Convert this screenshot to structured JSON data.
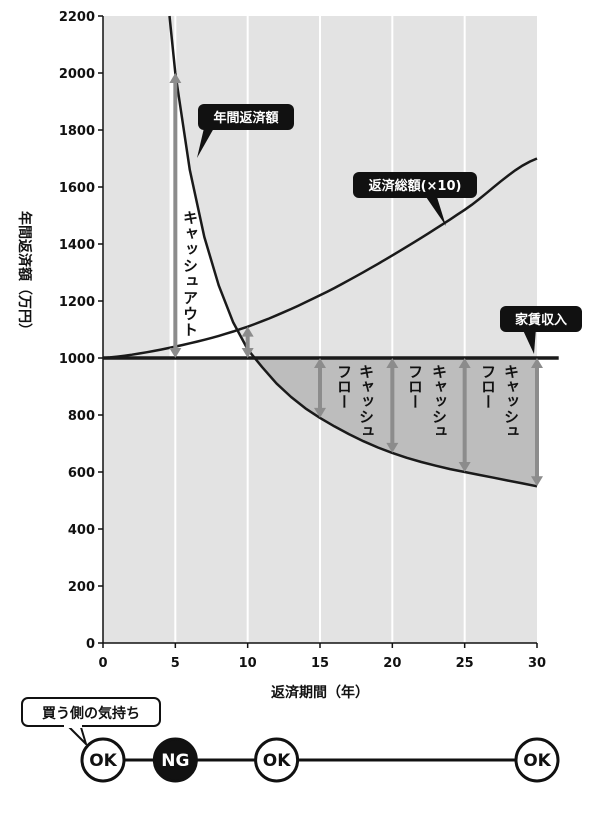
{
  "chart_data": {
    "type": "line",
    "xlabel": "返済期間（年）",
    "ylabel": "年間返済額（万円）",
    "xlim": [
      0,
      30
    ],
    "ylim": [
      0,
      2200
    ],
    "x_ticks": [
      0,
      5,
      10,
      15,
      20,
      25,
      30
    ],
    "y_ticks": [
      0,
      200,
      400,
      600,
      800,
      1000,
      1200,
      1400,
      1600,
      1800,
      2000,
      2200
    ],
    "series": [
      {
        "name": "年間返済額",
        "x": [
          4.6,
          5,
          6,
          7,
          8,
          9,
          10,
          11,
          12,
          13,
          14,
          15,
          16,
          17,
          18,
          19,
          20,
          21,
          22,
          23,
          24,
          25,
          26,
          27,
          28,
          29,
          30
        ],
        "y": [
          2200,
          2000,
          1660,
          1425,
          1255,
          1125,
          1030,
          968,
          910,
          863,
          823,
          790,
          760,
          733,
          708,
          686,
          667,
          650,
          635,
          622,
          610,
          600,
          590,
          580,
          570,
          560,
          550
        ]
      },
      {
        "name": "返済総額（×10）",
        "x": [
          0,
          5,
          10,
          15,
          20,
          25,
          30
        ],
        "y": [
          1000,
          1040,
          1110,
          1220,
          1360,
          1520,
          1700
        ]
      },
      {
        "name": "家賃収入",
        "x": [
          0,
          31.5
        ],
        "y": [
          1000,
          1000
        ]
      }
    ],
    "arrows": [
      {
        "x": 5,
        "from": 1000,
        "to": 2000
      },
      {
        "x": 10,
        "from": 1000,
        "to": 1110
      },
      {
        "x": 15,
        "from": 1000,
        "to": 790
      },
      {
        "x": 20,
        "from": 1000,
        "to": 667
      },
      {
        "x": 25,
        "from": 1000,
        "to": 600
      },
      {
        "x": 30,
        "from": 1000,
        "to": 550
      }
    ],
    "annotations": {
      "cash_out": "キャッシュアウト",
      "cash_flow": [
        "キャッシュ",
        "フロー"
      ],
      "annual_payment": "年間返済額",
      "total_payment": "返済総額(×10)",
      "rent_income": "家賃収入"
    },
    "grid": true,
    "colors": {
      "plot_bg": "#e3e3e3",
      "gridline": "#ffffff",
      "curve": "#1a1a1a",
      "shade": "#bdbdbd",
      "arrow": "#8c8c8c",
      "callout_bg": "#111111"
    }
  },
  "buyer_timeline": {
    "title": "買う側の気持ち",
    "markers": [
      {
        "x": 0,
        "label": "OK",
        "filled": false
      },
      {
        "x": 5,
        "label": "NG",
        "filled": true
      },
      {
        "x": 12,
        "label": "OK",
        "filled": false
      },
      {
        "x": 30,
        "label": "OK",
        "filled": false
      }
    ]
  }
}
